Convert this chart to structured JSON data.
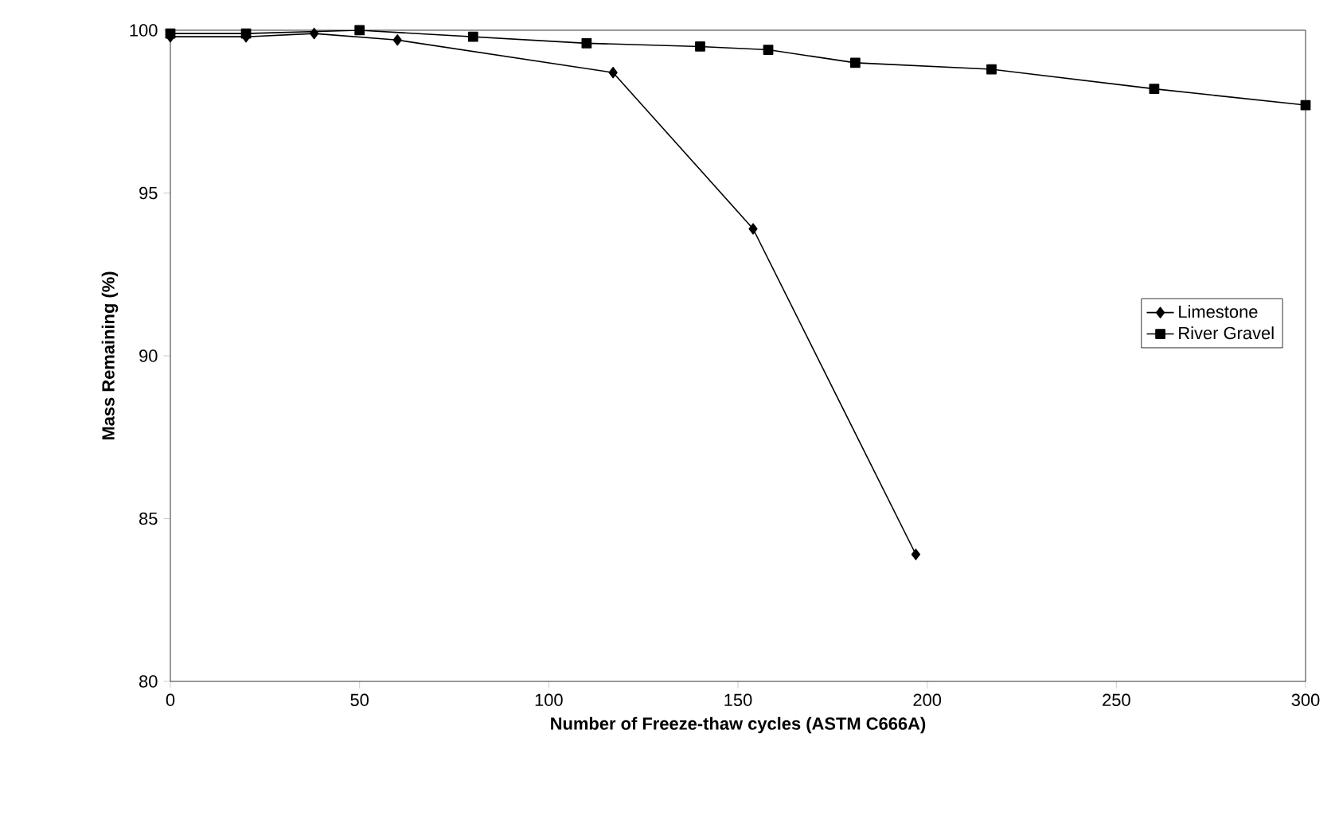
{
  "chart_data": {
    "type": "line",
    "xlabel": "Number of Freeze-thaw cycles (ASTM C666A)",
    "ylabel": "Mass Remaining (%)",
    "xlim": [
      0,
      300
    ],
    "ylim": [
      80,
      100
    ],
    "xticks": [
      0,
      50,
      100,
      150,
      200,
      250,
      300
    ],
    "yticks": [
      80,
      85,
      90,
      95,
      100
    ],
    "legend": "right",
    "grid": false,
    "series": [
      {
        "name": "Limestone",
        "color": "#000000",
        "marker": "diamond",
        "x": [
          0,
          20,
          38,
          60,
          117,
          154,
          197
        ],
        "values": [
          99.8,
          99.8,
          99.9,
          99.7,
          98.7,
          93.9,
          83.9
        ]
      },
      {
        "name": "River Gravel",
        "color": "#000000",
        "marker": "square",
        "x": [
          0,
          20,
          50,
          80,
          110,
          140,
          158,
          181,
          217,
          260,
          300
        ],
        "values": [
          99.9,
          99.9,
          100.0,
          99.8,
          99.6,
          99.5,
          99.4,
          99.0,
          98.8,
          98.2,
          97.7
        ]
      }
    ]
  }
}
